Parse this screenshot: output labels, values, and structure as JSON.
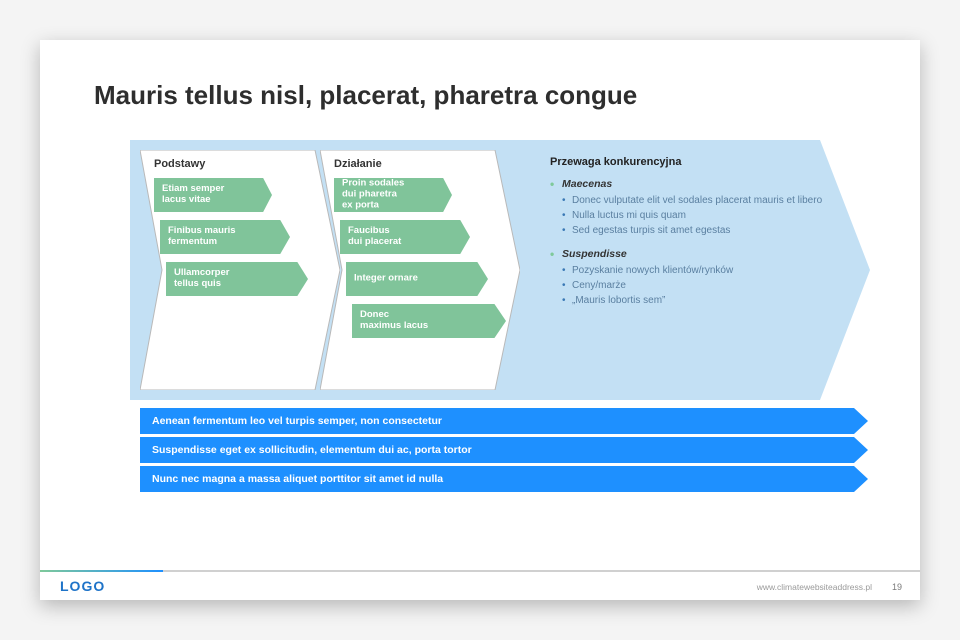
{
  "title": "Mauris tellus nisl, placerat, pharetra congue",
  "colors": {
    "bg_chevron": "#c3e0f4",
    "panel_fill": "#ffffff",
    "panel_stroke": "#b9b9b9",
    "pill_fill": "#80c49a",
    "bar_fill": "#1e90ff",
    "bar_divider": "#ffffff",
    "logo": "#1e73c8",
    "bullet_green": "#7fc99a",
    "bullet_blue": "#3a78b5",
    "sub_text": "#5a7fa0"
  },
  "panels": [
    {
      "header": "Podstawy",
      "items": [
        {
          "label": "Etiam semper\nlacus vitae",
          "wclass": "w1"
        },
        {
          "label": "Finibus mauris\nfermentum",
          "wclass": "w2"
        },
        {
          "label": "Ullamcorper\ntellus quis",
          "wclass": "w3"
        }
      ]
    },
    {
      "header": "Działanie",
      "items": [
        {
          "label": "Proin sodales\ndui pharetra\nex porta",
          "wclass": "w1"
        },
        {
          "label": "Faucibus\ndui placerat",
          "wclass": "w2"
        },
        {
          "label": "Integer ornare",
          "wclass": "w3"
        },
        {
          "label": "Donec\nmaximus lacus",
          "wclass": "w4"
        }
      ]
    }
  ],
  "right": {
    "header": "Przewaga konkurencyjna",
    "groups": [
      {
        "title": "Maecenas",
        "bullets": [
          "Donec vulputate elit vel sodales placerat mauris et libero",
          "Nulla luctus mi quis quam",
          "Sed egestas turpis sit amet egestas"
        ]
      },
      {
        "title": "Suspendisse",
        "bullets": [
          "Pozyskanie nowych klientów/rynków",
          "Ceny/marże",
          "„Mauris lobortis sem”"
        ]
      }
    ]
  },
  "bars": [
    "Aenean fermentum leo vel turpis semper, non consectetur",
    "Suspendisse eget ex sollicitudin,  elementum dui ac, porta tortor",
    "Nunc nec magna a massa aliquet porttitor sit amet id nulla"
  ],
  "footer": {
    "logo": "LOGO",
    "url": "www.climatewebsiteaddress.pl",
    "page": "19"
  }
}
